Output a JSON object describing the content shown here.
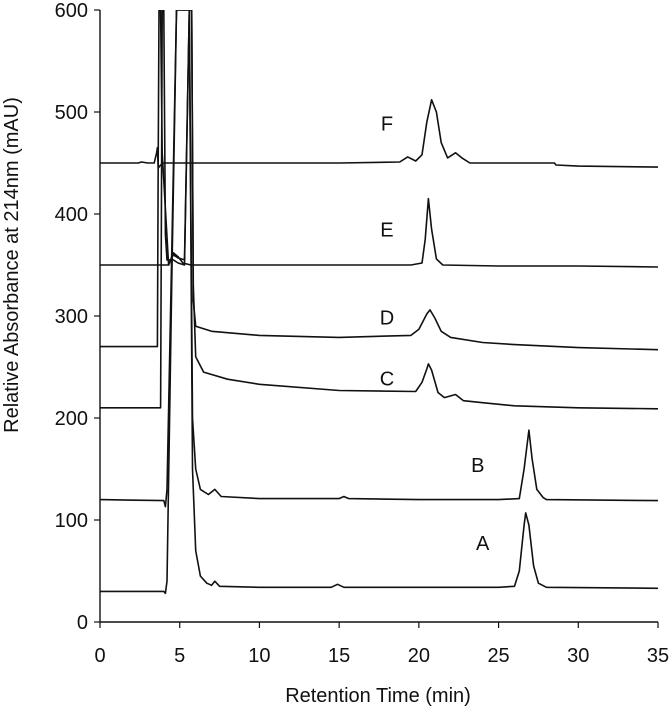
{
  "chart_data": {
    "type": "line",
    "xlabel": "Retention Time (min)",
    "ylabel": "Relative Absorbance at 214nm (mAU)",
    "xlim": [
      0,
      35
    ],
    "ylim": [
      0,
      600
    ],
    "x_ticks": [
      "0",
      "5",
      "10",
      "15",
      "20",
      "25",
      "30",
      "35"
    ],
    "y_ticks": [
      "0",
      "100",
      "200",
      "300",
      "400",
      "500",
      "600"
    ],
    "grid": false,
    "series": [
      {
        "name": "A",
        "points": [
          [
            0,
            30
          ],
          [
            3.9,
            30
          ],
          [
            4.0,
            30
          ],
          [
            4.1,
            28
          ],
          [
            4.2,
            40
          ],
          [
            4.5,
            330
          ],
          [
            4.8,
            600
          ],
          [
            5.3,
            600
          ],
          [
            5.6,
            600
          ],
          [
            5.8,
            150
          ],
          [
            6.0,
            70
          ],
          [
            6.3,
            45
          ],
          [
            6.7,
            38
          ],
          [
            7.0,
            36
          ],
          [
            7.2,
            40
          ],
          [
            7.5,
            35
          ],
          [
            10,
            34
          ],
          [
            14.5,
            34
          ],
          [
            14.9,
            37
          ],
          [
            15.3,
            34
          ],
          [
            20,
            34
          ],
          [
            25,
            34
          ],
          [
            26.0,
            35
          ],
          [
            26.3,
            50
          ],
          [
            26.6,
            95
          ],
          [
            26.7,
            107
          ],
          [
            26.9,
            95
          ],
          [
            27.2,
            55
          ],
          [
            27.5,
            38
          ],
          [
            28,
            34
          ],
          [
            35,
            33
          ]
        ]
      },
      {
        "name": "B",
        "points": [
          [
            0,
            120
          ],
          [
            4.0,
            119
          ],
          [
            4.1,
            113
          ],
          [
            4.2,
            130
          ],
          [
            4.5,
            360
          ],
          [
            4.8,
            600
          ],
          [
            5.6,
            600
          ],
          [
            5.8,
            200
          ],
          [
            6.0,
            150
          ],
          [
            6.3,
            130
          ],
          [
            6.8,
            125
          ],
          [
            7.2,
            130
          ],
          [
            7.6,
            123
          ],
          [
            10,
            121
          ],
          [
            15,
            121
          ],
          [
            15.3,
            123
          ],
          [
            15.6,
            121
          ],
          [
            20,
            120
          ],
          [
            25,
            120
          ],
          [
            26.3,
            121
          ],
          [
            26.6,
            150
          ],
          [
            26.9,
            188
          ],
          [
            27.1,
            160
          ],
          [
            27.4,
            130
          ],
          [
            27.8,
            122
          ],
          [
            28,
            120
          ],
          [
            35,
            119
          ]
        ]
      },
      {
        "name": "C",
        "points": [
          [
            0,
            210
          ],
          [
            3.8,
            210
          ],
          [
            3.85,
            400
          ],
          [
            3.9,
            600
          ],
          [
            4.0,
            600
          ],
          [
            4.1,
            380
          ],
          [
            4.2,
            355
          ],
          [
            4.6,
            355
          ],
          [
            4.9,
            352
          ],
          [
            5.3,
            350
          ],
          [
            5.6,
            600
          ],
          [
            5.75,
            600
          ],
          [
            5.85,
            330
          ],
          [
            6.0,
            260
          ],
          [
            6.5,
            245
          ],
          [
            8,
            238
          ],
          [
            10,
            233
          ],
          [
            15,
            227
          ],
          [
            19.8,
            226
          ],
          [
            20.2,
            235
          ],
          [
            20.5,
            248
          ],
          [
            20.6,
            253
          ],
          [
            20.8,
            247
          ],
          [
            21.2,
            225
          ],
          [
            21.6,
            220
          ],
          [
            22.3,
            223
          ],
          [
            22.8,
            217
          ],
          [
            24,
            215
          ],
          [
            26,
            212
          ],
          [
            30,
            210
          ],
          [
            35,
            209
          ]
        ]
      },
      {
        "name": "D",
        "points": [
          [
            0,
            270
          ],
          [
            3.6,
            270
          ],
          [
            3.65,
            450
          ],
          [
            3.7,
            600
          ],
          [
            3.8,
            600
          ],
          [
            3.9,
            460
          ],
          [
            4.3,
            350
          ],
          [
            4.6,
            360
          ],
          [
            4.9,
            357
          ],
          [
            5.3,
            355
          ],
          [
            5.6,
            600
          ],
          [
            5.75,
            600
          ],
          [
            5.85,
            315
          ],
          [
            6.0,
            290
          ],
          [
            7,
            285
          ],
          [
            10,
            281
          ],
          [
            15,
            279
          ],
          [
            19.5,
            281
          ],
          [
            20.0,
            287
          ],
          [
            20.5,
            302
          ],
          [
            20.7,
            306
          ],
          [
            21.0,
            298
          ],
          [
            21.4,
            285
          ],
          [
            22,
            279
          ],
          [
            24,
            274
          ],
          [
            26,
            272
          ],
          [
            30,
            269
          ],
          [
            35,
            267
          ]
        ]
      },
      {
        "name": "E",
        "points": [
          [
            0,
            350
          ],
          [
            4.3,
            350
          ],
          [
            4.6,
            362
          ],
          [
            4.9,
            358
          ],
          [
            5.2,
            352
          ],
          [
            5.7,
            350
          ],
          [
            10,
            350
          ],
          [
            15,
            350
          ],
          [
            19.5,
            350
          ],
          [
            20.2,
            352
          ],
          [
            20.4,
            375
          ],
          [
            20.6,
            415
          ],
          [
            20.8,
            385
          ],
          [
            21.1,
            356
          ],
          [
            21.5,
            350
          ],
          [
            25,
            349
          ],
          [
            30,
            349
          ],
          [
            35,
            348
          ]
        ]
      },
      {
        "name": "F",
        "points": [
          [
            0,
            450
          ],
          [
            2.4,
            450
          ],
          [
            2.6,
            451
          ],
          [
            3.0,
            450
          ],
          [
            3.4,
            450
          ],
          [
            3.55,
            460
          ],
          [
            3.6,
            465
          ],
          [
            3.65,
            445
          ],
          [
            3.8,
            448
          ],
          [
            4.0,
            450
          ],
          [
            10,
            450
          ],
          [
            15,
            450
          ],
          [
            18.8,
            451
          ],
          [
            19.3,
            456
          ],
          [
            19.8,
            452
          ],
          [
            20.2,
            458
          ],
          [
            20.5,
            490
          ],
          [
            20.8,
            512
          ],
          [
            21.1,
            500
          ],
          [
            21.4,
            470
          ],
          [
            21.8,
            455
          ],
          [
            22.3,
            460
          ],
          [
            22.7,
            455
          ],
          [
            23.2,
            450
          ],
          [
            28.5,
            450
          ],
          [
            28.6,
            448
          ],
          [
            30,
            447
          ],
          [
            35,
            446
          ]
        ]
      }
    ],
    "annotations": [
      {
        "text": "F",
        "x": 18.0,
        "y": 487
      },
      {
        "text": "E",
        "x": 18.0,
        "y": 383
      },
      {
        "text": "D",
        "x": 18.0,
        "y": 297
      },
      {
        "text": "C",
        "x": 18.0,
        "y": 237
      },
      {
        "text": "B",
        "x": 23.7,
        "y": 152
      },
      {
        "text": "A",
        "x": 24.0,
        "y": 76
      }
    ],
    "colors": {
      "line": "#111111",
      "background": "#ffffff"
    }
  }
}
